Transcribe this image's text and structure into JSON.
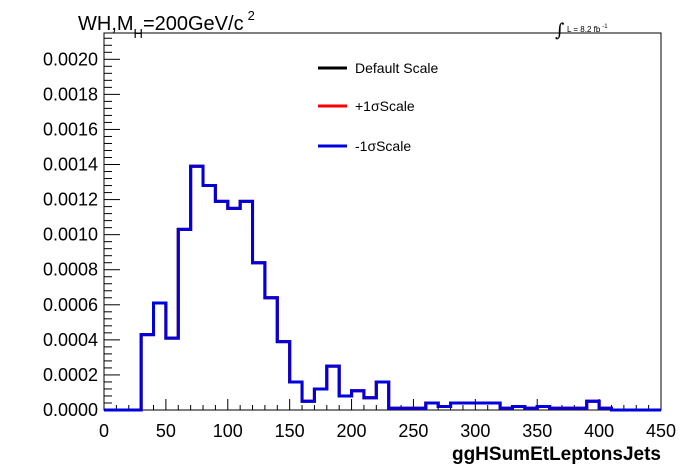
{
  "chart_data": {
    "type": "histogram",
    "title_main": "WH,M",
    "title_subscript": "H",
    "title_rest": "=200GeV/c",
    "title_superscript": "2",
    "luminosity_label": "L = 8.2 fb",
    "luminosity_superscript": "-1",
    "xlabel": "ggHSumEtLeptonsJets",
    "xlim": [
      0,
      450
    ],
    "ylim": [
      0,
      0.00215
    ],
    "x_ticks": [
      0,
      50,
      100,
      150,
      200,
      250,
      300,
      350,
      400,
      450
    ],
    "x_tick_labels": [
      "0",
      "50",
      "100",
      "150",
      "200",
      "250",
      "300",
      "350",
      "400",
      "450"
    ],
    "y_ticks": [
      0,
      0.0002,
      0.0004,
      0.0006,
      0.0008,
      0.001,
      0.0012,
      0.0014,
      0.0016,
      0.0018,
      0.002
    ],
    "y_tick_labels": [
      "0.0000",
      "0.0002",
      "0.0004",
      "0.0006",
      "0.0008",
      "0.0010",
      "0.0012",
      "0.0014",
      "0.0016",
      "0.0018",
      "0.0020"
    ],
    "bin_width": 5,
    "bin_low_edges": [
      0,
      5,
      10,
      15,
      20,
      25,
      30,
      35,
      40,
      45,
      50,
      55,
      60,
      65,
      70,
      75,
      80,
      85,
      90,
      95,
      100,
      105,
      110,
      115,
      120,
      125,
      130,
      135,
      140,
      145,
      150,
      155,
      160,
      165,
      170,
      175,
      180,
      185,
      190,
      195,
      200,
      205,
      210,
      215,
      220,
      225,
      230,
      235,
      240,
      245,
      250,
      255,
      260,
      265,
      270,
      275,
      280,
      285,
      290,
      295,
      300,
      305,
      310,
      315,
      320,
      325,
      330,
      335,
      340,
      345,
      350,
      355,
      360,
      365,
      370,
      375,
      380,
      385,
      390,
      395,
      400,
      405,
      410,
      415,
      420,
      425,
      430,
      435,
      440,
      445
    ],
    "series": [
      {
        "name": "Default Scale",
        "color": "#000000",
        "values": [
          0,
          0,
          0,
          0,
          0,
          0,
          0.00043,
          0.00043,
          0.00061,
          0.00061,
          0.00041,
          0.00041,
          0.00103,
          0.00103,
          0.00139,
          0.00139,
          0.00128,
          0.00128,
          0.00119,
          0.00119,
          0.00115,
          0.00115,
          0.00119,
          0.00119,
          0.00084,
          0.00084,
          0.00064,
          0.00064,
          0.00039,
          0.00039,
          0.00016,
          0.00016,
          5e-05,
          5e-05,
          0.00012,
          0.00012,
          0.00025,
          0.00025,
          8e-05,
          8e-05,
          0.00011,
          0.00011,
          7e-05,
          7e-05,
          0.00016,
          0.00016,
          1e-05,
          1e-05,
          1e-05,
          1e-05,
          1e-05,
          1e-05,
          4e-05,
          4e-05,
          2e-05,
          2e-05,
          4e-05,
          4e-05,
          4e-05,
          4e-05,
          4e-05,
          4e-05,
          4e-05,
          4e-05,
          1e-05,
          1e-05,
          2e-05,
          2e-05,
          1e-05,
          1e-05,
          2e-05,
          2e-05,
          1e-05,
          1e-05,
          1e-05,
          1e-05,
          1e-05,
          1e-05,
          5e-05,
          5e-05,
          1e-05,
          1e-05,
          0,
          0,
          0,
          0,
          0,
          0,
          0,
          0
        ]
      },
      {
        "name": "+1σScale",
        "color": "#ff0000",
        "values": [
          0,
          0,
          0,
          0,
          0,
          0,
          0.00043,
          0.00043,
          0.00061,
          0.00061,
          0.00041,
          0.00041,
          0.00103,
          0.00103,
          0.00139,
          0.00139,
          0.00128,
          0.00128,
          0.00119,
          0.00119,
          0.00115,
          0.00115,
          0.00119,
          0.00119,
          0.00084,
          0.00084,
          0.00064,
          0.00064,
          0.00039,
          0.00039,
          0.00016,
          0.00016,
          5e-05,
          5e-05,
          0.00012,
          0.00012,
          0.00025,
          0.00025,
          8e-05,
          8e-05,
          0.00011,
          0.00011,
          7e-05,
          7e-05,
          0.00016,
          0.00016,
          1e-05,
          1e-05,
          1e-05,
          1e-05,
          1e-05,
          1e-05,
          4e-05,
          4e-05,
          2e-05,
          2e-05,
          4e-05,
          4e-05,
          4e-05,
          4e-05,
          4e-05,
          4e-05,
          4e-05,
          4e-05,
          1e-05,
          1e-05,
          2e-05,
          2e-05,
          1e-05,
          1e-05,
          2e-05,
          2e-05,
          1e-05,
          1e-05,
          1e-05,
          1e-05,
          1e-05,
          1e-05,
          5e-05,
          5e-05,
          1e-05,
          1e-05,
          0,
          0,
          0,
          0,
          0,
          0,
          0,
          0
        ]
      },
      {
        "name": "-1σScale",
        "color": "#0000dd",
        "values": [
          0,
          0,
          0,
          0,
          0,
          0,
          0.00043,
          0.00043,
          0.00061,
          0.00061,
          0.00041,
          0.00041,
          0.00103,
          0.00103,
          0.00139,
          0.00139,
          0.00128,
          0.00128,
          0.00119,
          0.00119,
          0.00115,
          0.00115,
          0.00119,
          0.00119,
          0.00084,
          0.00084,
          0.00064,
          0.00064,
          0.00039,
          0.00039,
          0.00016,
          0.00016,
          5e-05,
          5e-05,
          0.00012,
          0.00012,
          0.00025,
          0.00025,
          8e-05,
          8e-05,
          0.00011,
          0.00011,
          7e-05,
          7e-05,
          0.00016,
          0.00016,
          1e-05,
          1e-05,
          1e-05,
          1e-05,
          1e-05,
          1e-05,
          4e-05,
          4e-05,
          2e-05,
          2e-05,
          4e-05,
          4e-05,
          4e-05,
          4e-05,
          4e-05,
          4e-05,
          4e-05,
          4e-05,
          1e-05,
          1e-05,
          2e-05,
          2e-05,
          1e-05,
          1e-05,
          2e-05,
          2e-05,
          1e-05,
          1e-05,
          1e-05,
          1e-05,
          1e-05,
          1e-05,
          5e-05,
          5e-05,
          1e-05,
          1e-05,
          0,
          0,
          0,
          0,
          0,
          0,
          0,
          0
        ]
      }
    ],
    "legend_position": "top-center",
    "grid": false
  }
}
